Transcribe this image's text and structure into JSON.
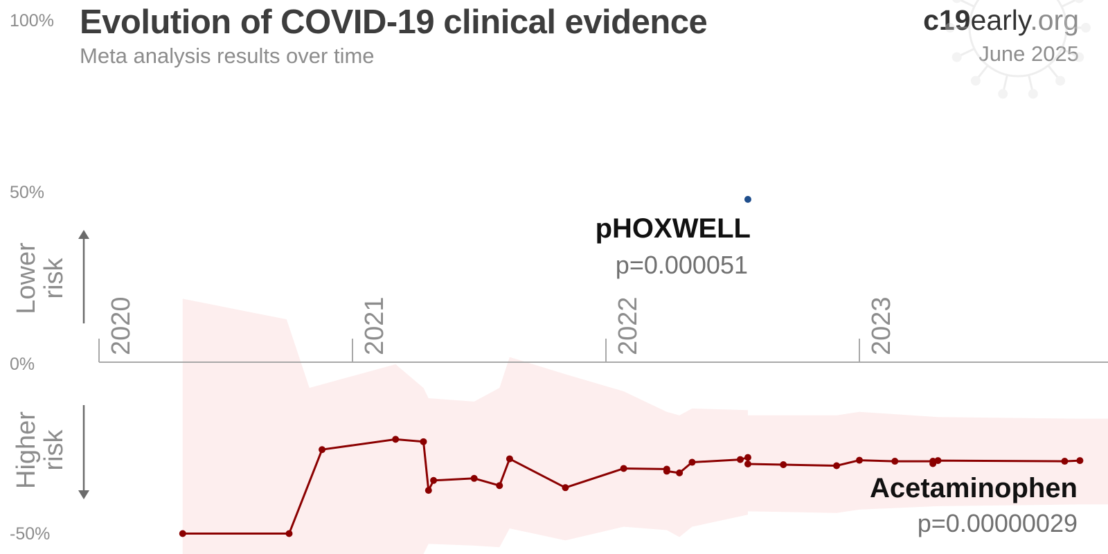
{
  "header": {
    "title": "Evolution of COVID-19 clinical evidence",
    "subtitle": "Meta analysis results over time",
    "brand_bold": "c19",
    "brand_normal": "early",
    "brand_suffix": ".org",
    "date": "June 2025"
  },
  "chart_data": {
    "type": "line",
    "title": "Evolution of COVID-19 clinical evidence",
    "subtitle": "Meta analysis results over time",
    "y_axis": {
      "ticks": [
        "100%",
        "50%",
        "0%",
        "-50%"
      ],
      "upper_label": "Lower risk",
      "lower_label": "Higher risk",
      "range": [
        -50,
        100
      ],
      "unit": "%"
    },
    "x_axis": {
      "ticks": [
        "2020",
        "2021",
        "2022",
        "2023"
      ],
      "range": [
        2020.0,
        2024.1
      ]
    },
    "series": [
      {
        "name": "pHOXWELL",
        "p_label": "p=0.000051",
        "color": "#1f4e8c",
        "points": [
          {
            "x": 2022.56,
            "y": 47.5
          }
        ]
      },
      {
        "name": "Acetaminophen",
        "p_label": "p=0.00000029",
        "color": "#8b0000",
        "band_color": "#fdeeee",
        "points": [
          {
            "x": 2020.33,
            "y": -50.0
          },
          {
            "x": 2020.75,
            "y": -50.0
          },
          {
            "x": 2020.88,
            "y": -25.5
          },
          {
            "x": 2021.17,
            "y": -22.5
          },
          {
            "x": 2021.28,
            "y": -23.2
          },
          {
            "x": 2021.3,
            "y": -37.4
          },
          {
            "x": 2021.32,
            "y": -34.5
          },
          {
            "x": 2021.48,
            "y": -33.9
          },
          {
            "x": 2021.58,
            "y": -36.0
          },
          {
            "x": 2021.62,
            "y": -28.2
          },
          {
            "x": 2021.84,
            "y": -36.6
          },
          {
            "x": 2022.07,
            "y": -31.0
          },
          {
            "x": 2022.24,
            "y": -31.2
          },
          {
            "x": 2022.24,
            "y": -31.8
          },
          {
            "x": 2022.29,
            "y": -32.3
          },
          {
            "x": 2022.34,
            "y": -29.2
          },
          {
            "x": 2022.53,
            "y": -28.4
          },
          {
            "x": 2022.56,
            "y": -27.8
          },
          {
            "x": 2022.56,
            "y": -29.7
          },
          {
            "x": 2022.7,
            "y": -29.9
          },
          {
            "x": 2022.91,
            "y": -30.2
          },
          {
            "x": 2023.0,
            "y": -28.6
          },
          {
            "x": 2023.14,
            "y": -28.9
          },
          {
            "x": 2023.29,
            "y": -28.9
          },
          {
            "x": 2023.29,
            "y": -29.6
          },
          {
            "x": 2023.31,
            "y": -28.7
          },
          {
            "x": 2023.81,
            "y": -28.9
          },
          {
            "x": 2023.87,
            "y": -28.7
          }
        ],
        "band": [
          {
            "x": 2020.33,
            "upper": 18.5,
            "lower": -70.0
          },
          {
            "x": 2020.74,
            "upper": 12.5,
            "lower": -70.0
          },
          {
            "x": 2020.83,
            "upper": -7.5,
            "lower": -70.0
          },
          {
            "x": 2021.17,
            "upper": -0.6,
            "lower": -70.0
          },
          {
            "x": 2021.28,
            "upper": -7.5,
            "lower": -70.0
          },
          {
            "x": 2021.3,
            "upper": -10.5,
            "lower": -53.0
          },
          {
            "x": 2021.48,
            "upper": -11.5,
            "lower": -53.5
          },
          {
            "x": 2021.58,
            "upper": -7.5,
            "lower": -54.0
          },
          {
            "x": 2021.62,
            "upper": 1.5,
            "lower": -48.5
          },
          {
            "x": 2021.84,
            "upper": -3.5,
            "lower": -52.0
          },
          {
            "x": 2022.07,
            "upper": -8.5,
            "lower": -48.0
          },
          {
            "x": 2022.24,
            "upper": -14.5,
            "lower": -49.0
          },
          {
            "x": 2022.29,
            "upper": -15.5,
            "lower": -51.0
          },
          {
            "x": 2022.34,
            "upper": -13.5,
            "lower": -48.0
          },
          {
            "x": 2022.56,
            "upper": -14.0,
            "lower": -44.5
          },
          {
            "x": 2022.56,
            "upper": -15.5,
            "lower": -43.5
          },
          {
            "x": 2022.91,
            "upper": -15.5,
            "lower": -44.0
          },
          {
            "x": 2023.0,
            "upper": -14.5,
            "lower": -43.0
          },
          {
            "x": 2023.31,
            "upper": -16.0,
            "lower": -42.0
          },
          {
            "x": 2023.87,
            "upper": -16.5,
            "lower": -41.5
          }
        ]
      }
    ],
    "grid": false,
    "legend": "none (series labelled inline)"
  }
}
